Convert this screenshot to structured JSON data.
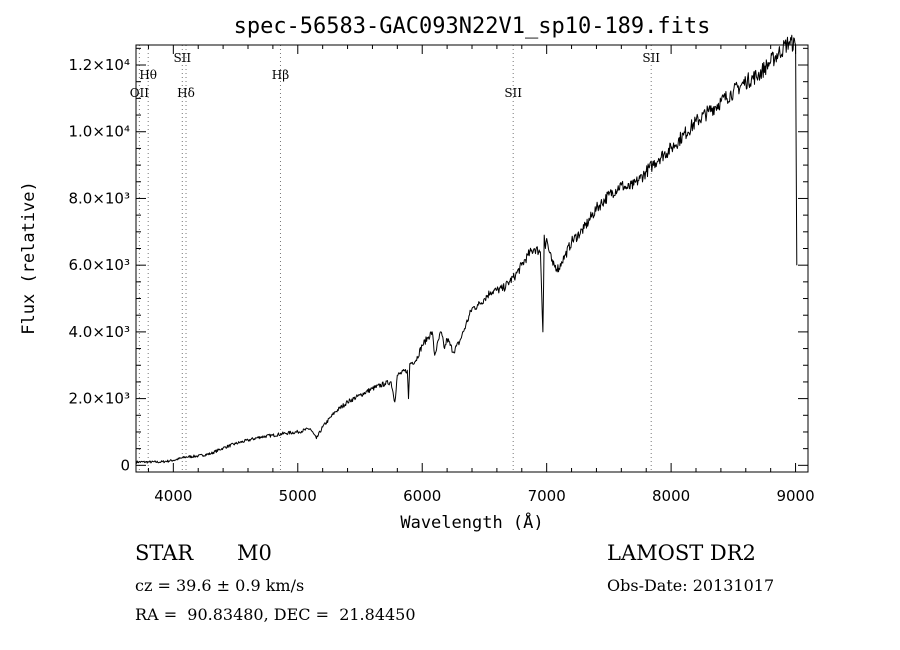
{
  "chart_data": {
    "type": "line",
    "title": "spec-56583-GAC093N22V1_sp10-189.fits",
    "xlabel": "Wavelength (Å)",
    "ylabel": "Flux (relative)",
    "xlim": [
      3700,
      9100
    ],
    "ylim": [
      -200,
      12600
    ],
    "x_ticks": [
      {
        "value": 4000,
        "label": "4000"
      },
      {
        "value": 5000,
        "label": "5000"
      },
      {
        "value": 6000,
        "label": "6000"
      },
      {
        "value": 7000,
        "label": "7000"
      },
      {
        "value": 8000,
        "label": "8000"
      },
      {
        "value": 9000,
        "label": "9000"
      }
    ],
    "y_ticks": [
      {
        "value": 0,
        "label": "0"
      },
      {
        "value": 2000,
        "label": "2.0×10³"
      },
      {
        "value": 4000,
        "label": "4.0×10³"
      },
      {
        "value": 6000,
        "label": "6.0×10³"
      },
      {
        "value": 8000,
        "label": "8.0×10³"
      },
      {
        "value": 10000,
        "label": "1.0×10⁴"
      },
      {
        "value": 12000,
        "label": "1.2×10⁴"
      }
    ],
    "spectral_lines": [
      {
        "label": "OII",
        "wavelength": 3727,
        "label_row": "low"
      },
      {
        "label": "Hθ",
        "wavelength": 3798,
        "label_row": "mid"
      },
      {
        "label": "SII",
        "wavelength": 4072,
        "label_row": "high"
      },
      {
        "label": "Hδ",
        "wavelength": 4102,
        "label_row": "low"
      },
      {
        "label": "Hβ",
        "wavelength": 4861,
        "label_row": "mid"
      },
      {
        "label": "SII",
        "wavelength": 6731,
        "label_row": "low"
      },
      {
        "label": "SII",
        "wavelength": 7840,
        "label_row": "high"
      }
    ],
    "series": [
      {
        "x": [
          3700,
          3800,
          3900,
          4000,
          4100,
          4200,
          4300,
          4400,
          4500,
          4600,
          4700,
          4800,
          4900,
          5000,
          5100,
          5150,
          5200,
          5300,
          5400,
          5500,
          5600,
          5700,
          5750,
          5780,
          5800,
          5880,
          5890,
          5900,
          5950,
          6000,
          6050,
          6080,
          6100,
          6150,
          6180,
          6200,
          6250,
          6300,
          6350,
          6400,
          6450,
          6500,
          6550,
          6600,
          6650,
          6700,
          6750,
          6800,
          6850,
          6900,
          6950,
          6970,
          6980,
          6990,
          7000,
          7020,
          7050,
          7100,
          7120,
          7150,
          7200,
          7300,
          7400,
          7500,
          7600,
          7650,
          7700,
          7750,
          7800,
          7850,
          7900,
          8000,
          8100,
          8200,
          8300,
          8400,
          8500,
          8600,
          8700,
          8800,
          8900,
          8950,
          9000,
          9010
        ],
        "y": [
          100,
          100,
          100,
          150,
          250,
          280,
          350,
          520,
          650,
          750,
          850,
          900,
          960,
          1000,
          1100,
          800,
          1150,
          1600,
          1900,
          2100,
          2300,
          2450,
          2500,
          1900,
          2700,
          2850,
          2000,
          3050,
          3150,
          3600,
          3850,
          4000,
          3300,
          4000,
          3500,
          3800,
          3400,
          3700,
          4200,
          4700,
          4800,
          5000,
          5200,
          5250,
          5300,
          5500,
          5700,
          6000,
          6300,
          6500,
          6400,
          4000,
          6900,
          6500,
          6800,
          6400,
          6000,
          5900,
          6100,
          6300,
          6700,
          7100,
          7700,
          8100,
          8400,
          8300,
          8400,
          8600,
          8800,
          9000,
          9200,
          9500,
          9900,
          10300,
          10600,
          10900,
          11200,
          11500,
          11700,
          12100,
          12500,
          12700,
          12600,
          6000
        ]
      }
    ]
  },
  "info": {
    "object_class": "STAR",
    "subclass": "M0",
    "survey": "LAMOST DR2",
    "velocity": "cz = 39.6 ± 0.9 km/s",
    "obs_date": "Obs-Date: 20131017",
    "coords": "RA =  90.83480, DEC =  21.84450"
  },
  "colors": {
    "line": "#000000",
    "background": "#ffffff",
    "marker_line": "#777777"
  }
}
